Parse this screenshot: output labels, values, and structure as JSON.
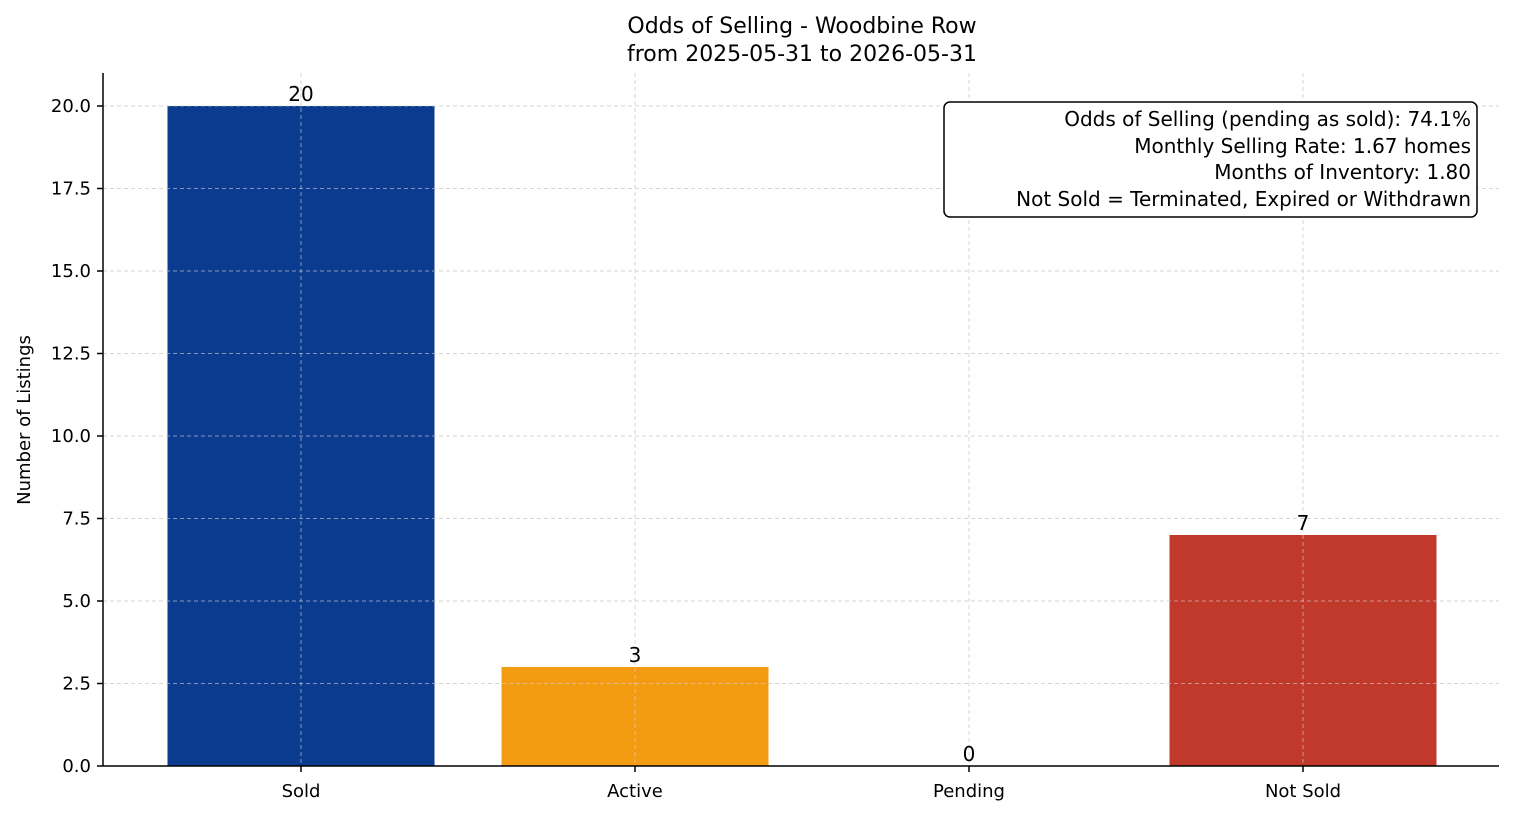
{
  "chart_data": {
    "type": "bar",
    "title": "Odds of Selling - Woodbine Row",
    "subtitle": "from 2025-05-31 to 2026-05-31",
    "xlabel": "",
    "ylabel": "Number of Listings",
    "categories": [
      "Sold",
      "Active",
      "Pending",
      "Not Sold"
    ],
    "values": [
      20,
      3,
      0,
      7
    ],
    "value_labels": [
      "20",
      "3",
      "0",
      "7"
    ],
    "colors": [
      "#0b3b8f",
      "#f39c12",
      "#7f8c8d",
      "#c0392b"
    ],
    "ylim": [
      0,
      21
    ],
    "yticks": [
      0.0,
      2.5,
      5.0,
      7.5,
      10.0,
      12.5,
      15.0,
      17.5,
      20.0
    ],
    "ytick_labels": [
      "0.0",
      "2.5",
      "5.0",
      "7.5",
      "10.0",
      "12.5",
      "15.0",
      "17.5",
      "20.0"
    ],
    "grid": true,
    "annotation_box": {
      "placement": "top-right",
      "lines": [
        "Odds of Selling (pending as sold): 74.1%",
        "Monthly Selling Rate: 1.67 homes",
        "Months of Inventory: 1.80",
        "Not Sold = Terminated, Expired or Withdrawn"
      ]
    }
  }
}
